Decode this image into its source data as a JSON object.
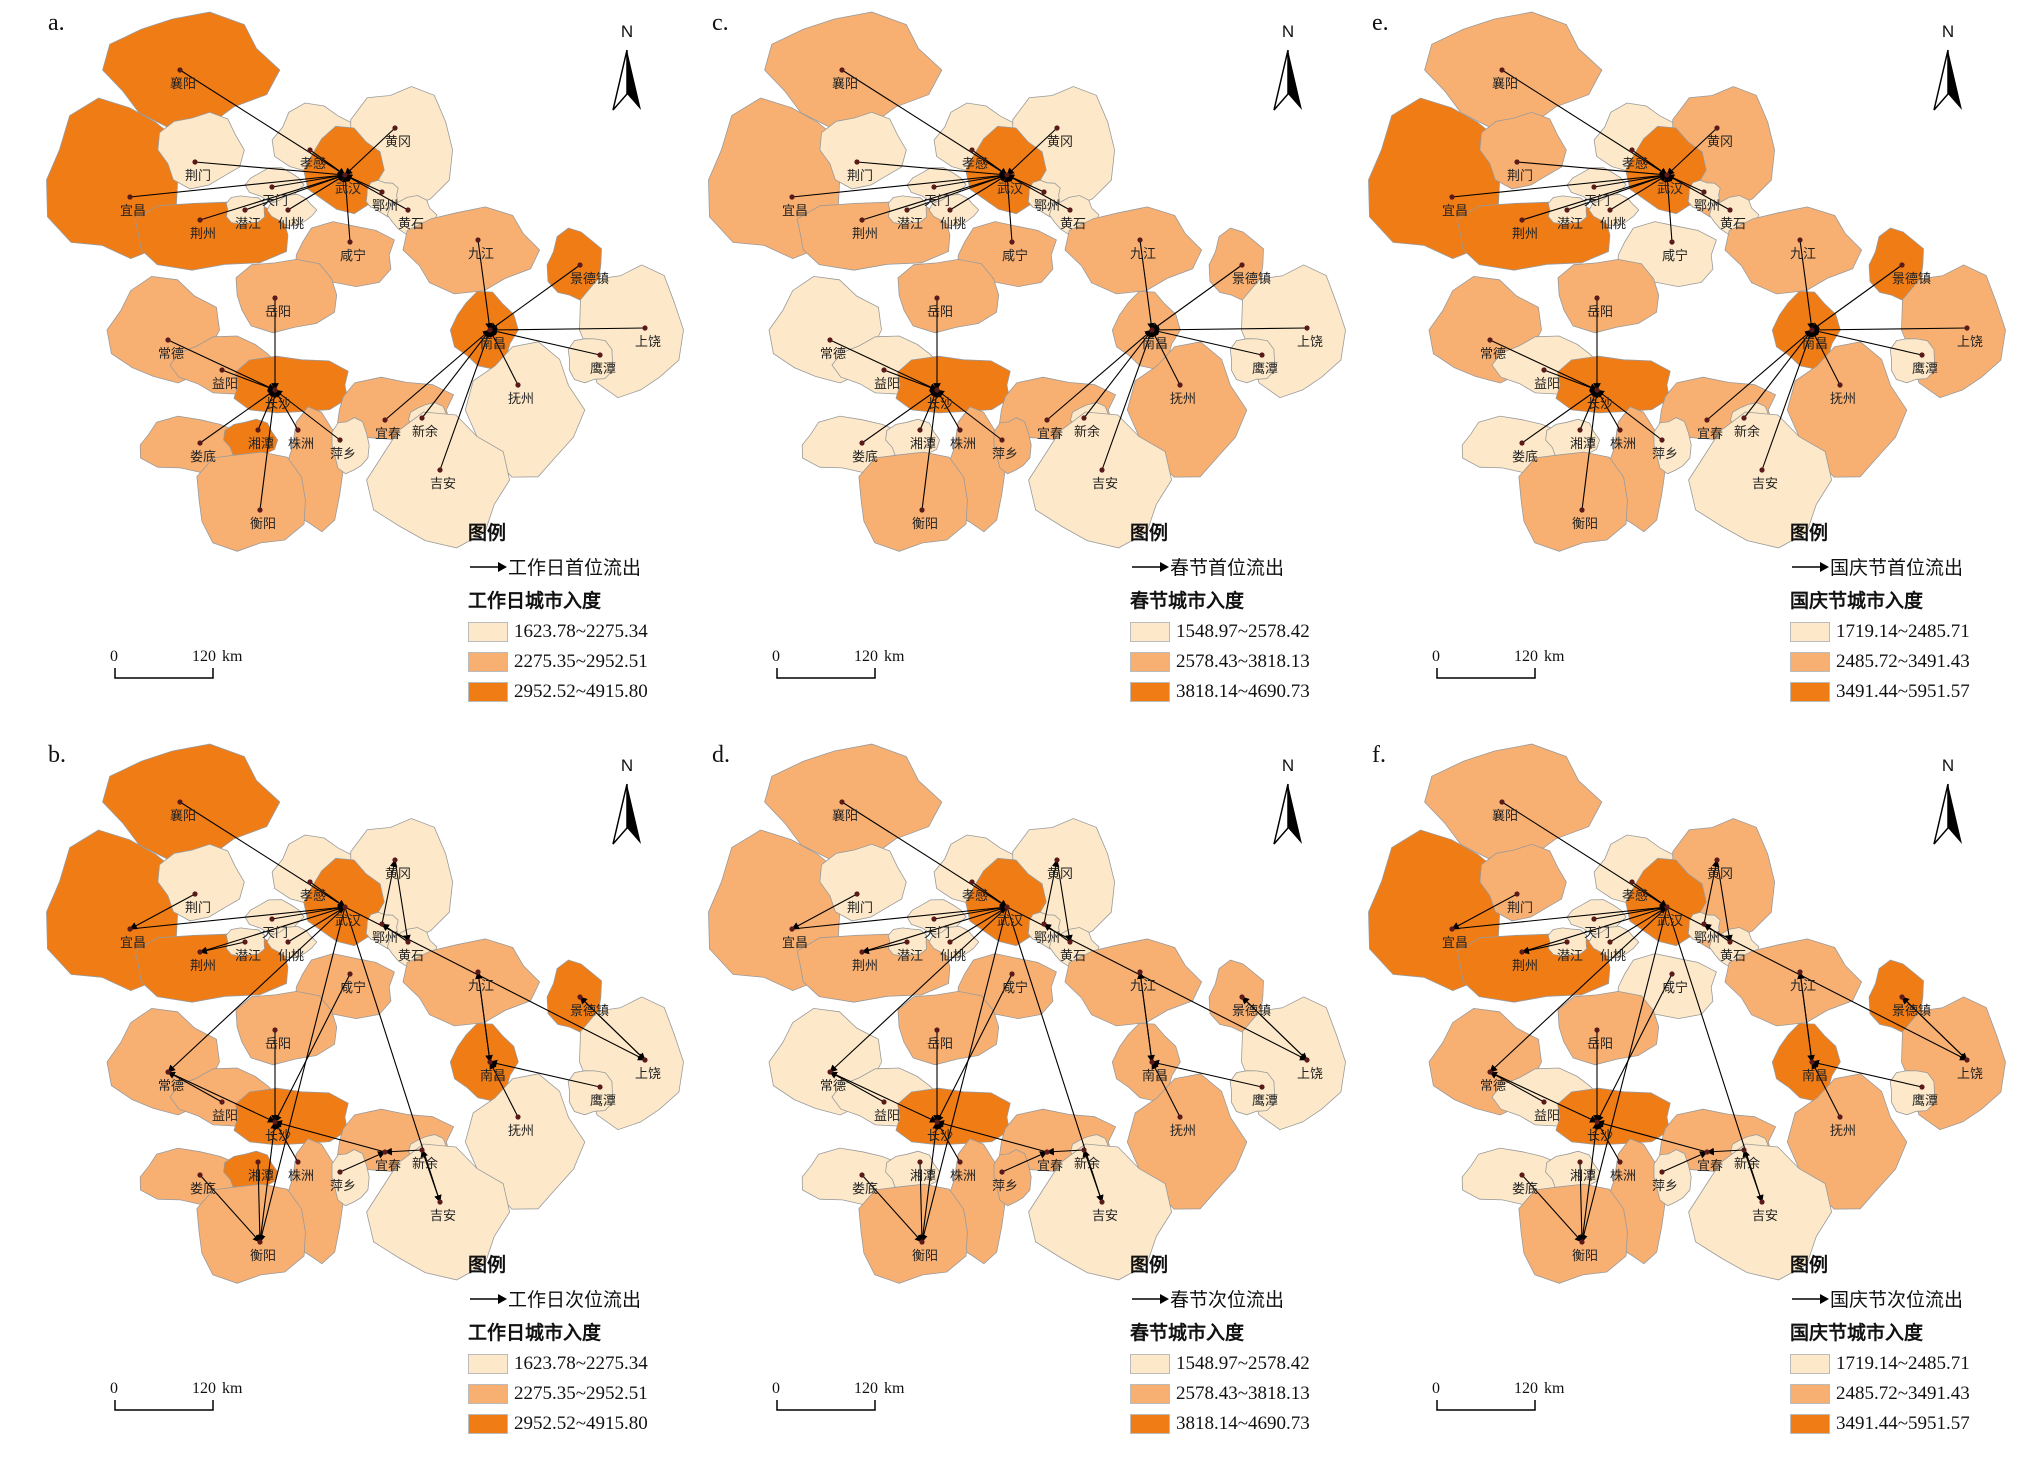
{
  "colors": {
    "class1": "#fde9c9",
    "class2": "#f8b072",
    "class3": "#f07c16",
    "boundary": "#9a9a9a",
    "flow": "#000000"
  },
  "north_label": "N",
  "scale": {
    "zero": "0",
    "max": "120",
    "unit": "km"
  },
  "legend_title": "图例",
  "cities": [
    "襄阳",
    "荆门",
    "孝感",
    "黄冈",
    "天门",
    "武汉",
    "宜昌",
    "潜江",
    "仙桃",
    "鄂州",
    "荆州",
    "黄石",
    "咸宁",
    "九江",
    "景德镇",
    "岳阳",
    "上饶",
    "常德",
    "南昌",
    "益阳",
    "鹰潭",
    "长沙",
    "抚州",
    "宜春",
    "新余",
    "娄底",
    "湘潭",
    "株洲",
    "萍乡",
    "吉安",
    "衡阳"
  ],
  "panels": [
    {
      "letter": "a.",
      "flow_label": "工作日首位流出",
      "index_title": "工作日城市入度",
      "classes": [
        "1623.78~2275.34",
        "2275.35~2952.51",
        "2952.52~4915.80"
      ]
    },
    {
      "letter": "c.",
      "flow_label": "春节首位流出",
      "index_title": "春节城市入度",
      "classes": [
        "1548.97~2578.42",
        "2578.43~3818.13",
        "3818.14~4690.73"
      ]
    },
    {
      "letter": "e.",
      "flow_label": "国庆节首位流出",
      "index_title": "国庆节城市入度",
      "classes": [
        "1719.14~2485.71",
        "2485.72~3491.43",
        "3491.44~5951.57"
      ]
    },
    {
      "letter": "b.",
      "flow_label": "工作日次位流出",
      "index_title": "工作日城市入度",
      "classes": [
        "1623.78~2275.34",
        "2275.35~2952.51",
        "2952.52~4915.80"
      ]
    },
    {
      "letter": "d.",
      "flow_label": "春节次位流出",
      "index_title": "春节城市入度",
      "classes": [
        "1548.97~2578.42",
        "2578.43~3818.13",
        "3818.14~4690.73"
      ]
    },
    {
      "letter": "f.",
      "flow_label": "国庆节次位流出",
      "index_title": "国庆节城市入度",
      "classes": [
        "1719.14~2485.71",
        "2485.72~3491.43",
        "3491.44~5951.57"
      ]
    }
  ]
}
